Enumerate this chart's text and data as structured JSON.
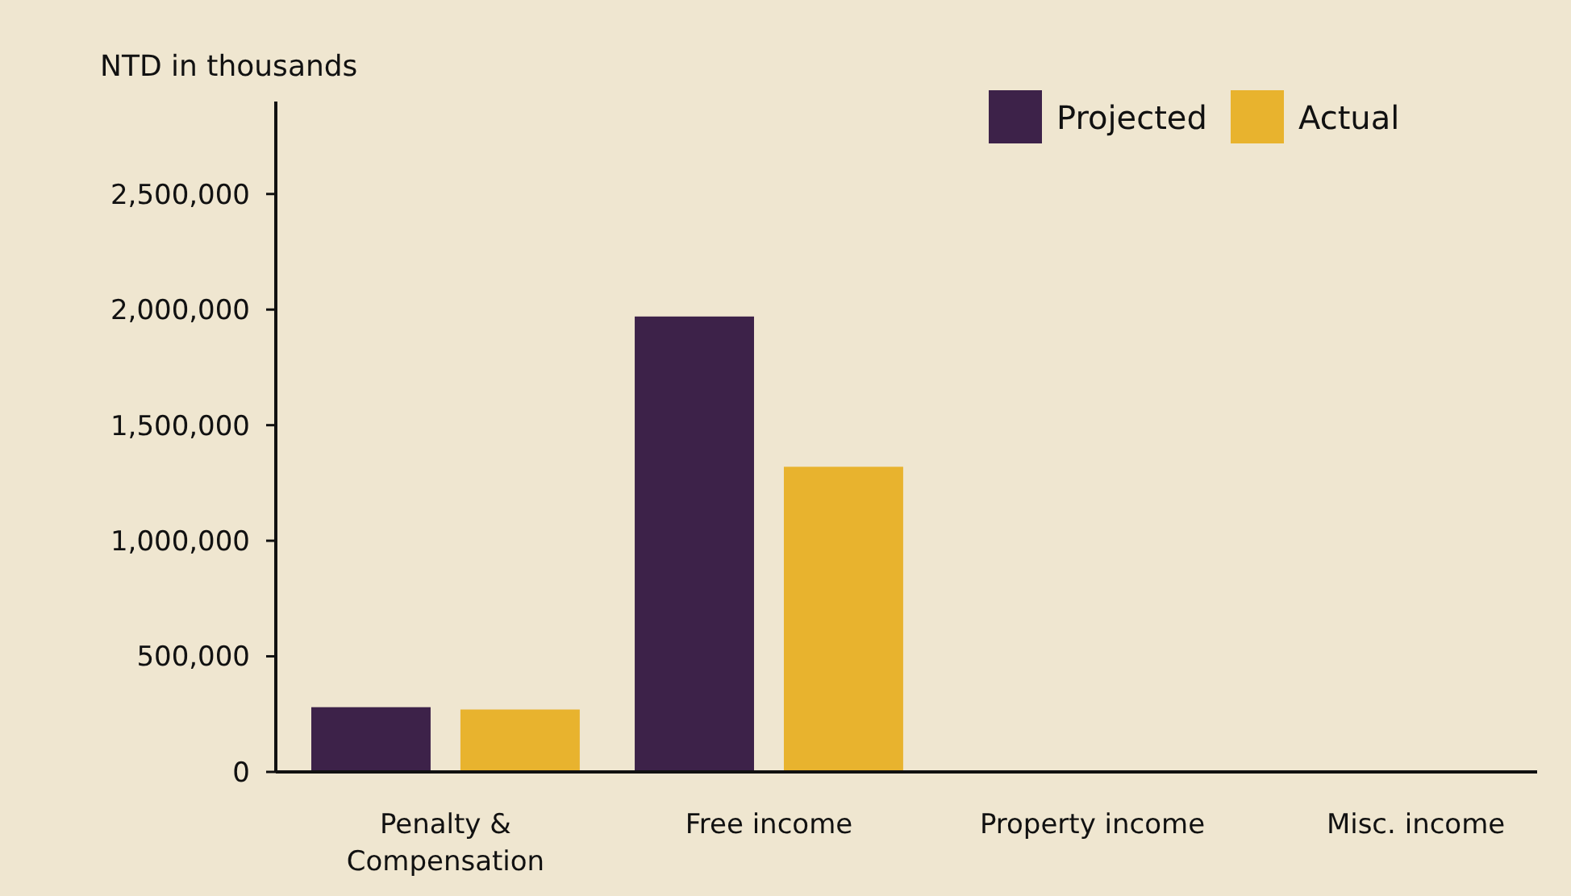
{
  "chart_data": {
    "type": "bar",
    "ylabel": "NTD in thousands",
    "categories": [
      "Penalty & Compensation",
      "Free income",
      "Property income",
      "Misc. income"
    ],
    "series": [
      {
        "name": "Projected",
        "color": "#3d2249",
        "values": [
          280000,
          1970000,
          0,
          0
        ]
      },
      {
        "name": "Actual",
        "color": "#e8b32e",
        "values": [
          270000,
          1320000,
          0,
          0
        ]
      }
    ],
    "ylim": [
      0,
      2900000
    ],
    "yticks": [
      {
        "value": 0,
        "label": "0"
      },
      {
        "value": 500000,
        "label": "500,000"
      },
      {
        "value": 1000000,
        "label": "1,000,000"
      },
      {
        "value": 1500000,
        "label": "1,500,000"
      },
      {
        "value": 2000000,
        "label": "2,000,000"
      },
      {
        "value": 2500000,
        "label": "2,500,000"
      }
    ],
    "grid": false,
    "legend": "top right"
  }
}
